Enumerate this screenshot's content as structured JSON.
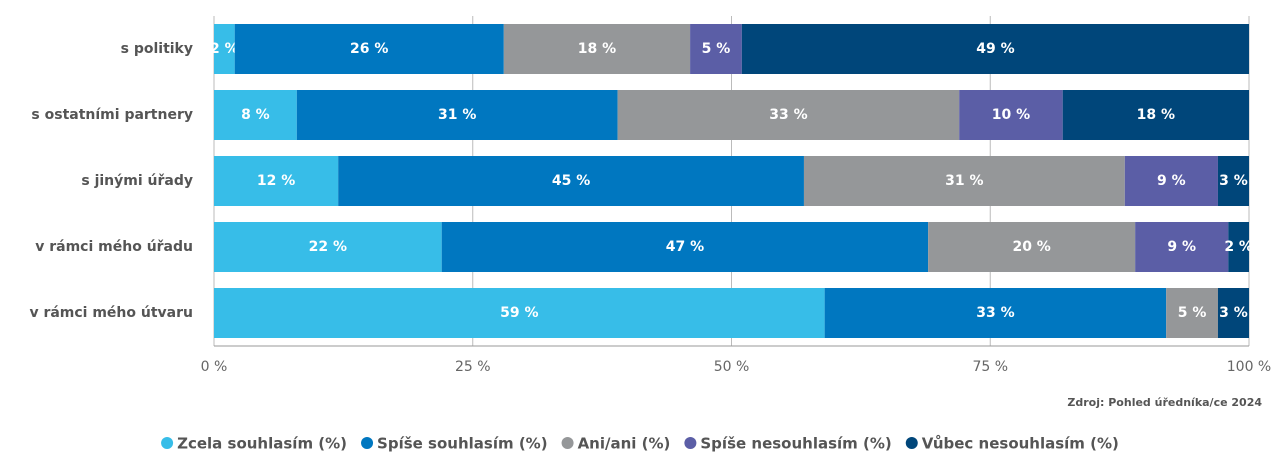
{
  "chart_data": {
    "type": "stacked_barh",
    "categories": [
      "s politiky",
      "s ostatními partnery",
      "s jinými úřady",
      "v rámci mého úřadu",
      "v rámci mého útvaru"
    ],
    "series": [
      {
        "name": "Zcela souhlasím (%)",
        "color": "#37bde8",
        "values": [
          2,
          8,
          12,
          22,
          59
        ],
        "value_labels": [
          "2 %",
          "8 %",
          "12 %",
          "22 %",
          "59 %"
        ]
      },
      {
        "name": "Spíše souhlasím (%)",
        "color": "#0077c0",
        "values": [
          26,
          31,
          45,
          47,
          33
        ],
        "value_labels": [
          "26 %",
          "31 %",
          "45 %",
          "47 %",
          "33 %"
        ]
      },
      {
        "name": "Ani/ani (%)",
        "color": "#959799",
        "values": [
          18,
          33,
          31,
          20,
          5
        ],
        "value_labels": [
          "18 %",
          "33 %",
          "31 %",
          "20 %",
          "5 %"
        ]
      },
      {
        "name": "Spíše nesouhlasím (%)",
        "color": "#5b5ea6",
        "values": [
          5,
          10,
          9,
          9,
          null
        ],
        "value_labels": [
          "5 %",
          "10 %",
          "9 %",
          "9 %",
          null
        ]
      },
      {
        "name": "Vůbec nesouhlasím (%)",
        "color": "#00467a",
        "values": [
          49,
          18,
          3,
          2,
          3
        ],
        "value_labels": [
          "49 %",
          "18 %",
          "3 %",
          "2 %",
          "3 %"
        ]
      }
    ],
    "xlim": [
      0,
      100
    ],
    "xticks": [
      {
        "value": 0,
        "label": "0 %"
      },
      {
        "value": 25,
        "label": "25 %"
      },
      {
        "value": 50,
        "label": "50 %"
      },
      {
        "value": 75,
        "label": "75 %"
      },
      {
        "value": 100,
        "label": "100 %"
      }
    ],
    "grid": true,
    "legend": "bottom",
    "source": "Zdroj: Pohled úředníka/ce 2024"
  }
}
